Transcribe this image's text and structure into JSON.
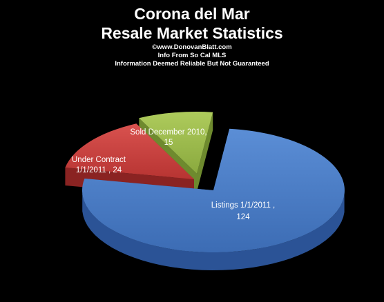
{
  "header": {
    "title_line1": "Corona del Mar",
    "title_line2": "Resale Market Statistics",
    "subtitle_line1": "©www.DonovanBlatt.com",
    "subtitle_line2": "Info  From So Cal MLS",
    "subtitle_line3": "Information Deemed Reliable But Not Guaranteed"
  },
  "chart_data": {
    "type": "pie",
    "title": "Corona del Mar Resale Market Statistics",
    "style": "3d-exploded",
    "legend": "none",
    "slices": [
      {
        "label_line1": "Listings 1/1/2011  ,",
        "label_line2": "124",
        "value": 124,
        "color": "#4a7cc4",
        "side_color": "#2b5396"
      },
      {
        "label_line1": "Under Contract",
        "label_line2": "1/1/2011  , 24",
        "value": 24,
        "color": "#c9403f",
        "side_color": "#8a2322"
      },
      {
        "label_line1": "Sold December  2010,",
        "label_line2": "15",
        "value": 15,
        "color": "#9bbb4c",
        "side_color": "#6e8a2e"
      }
    ]
  }
}
